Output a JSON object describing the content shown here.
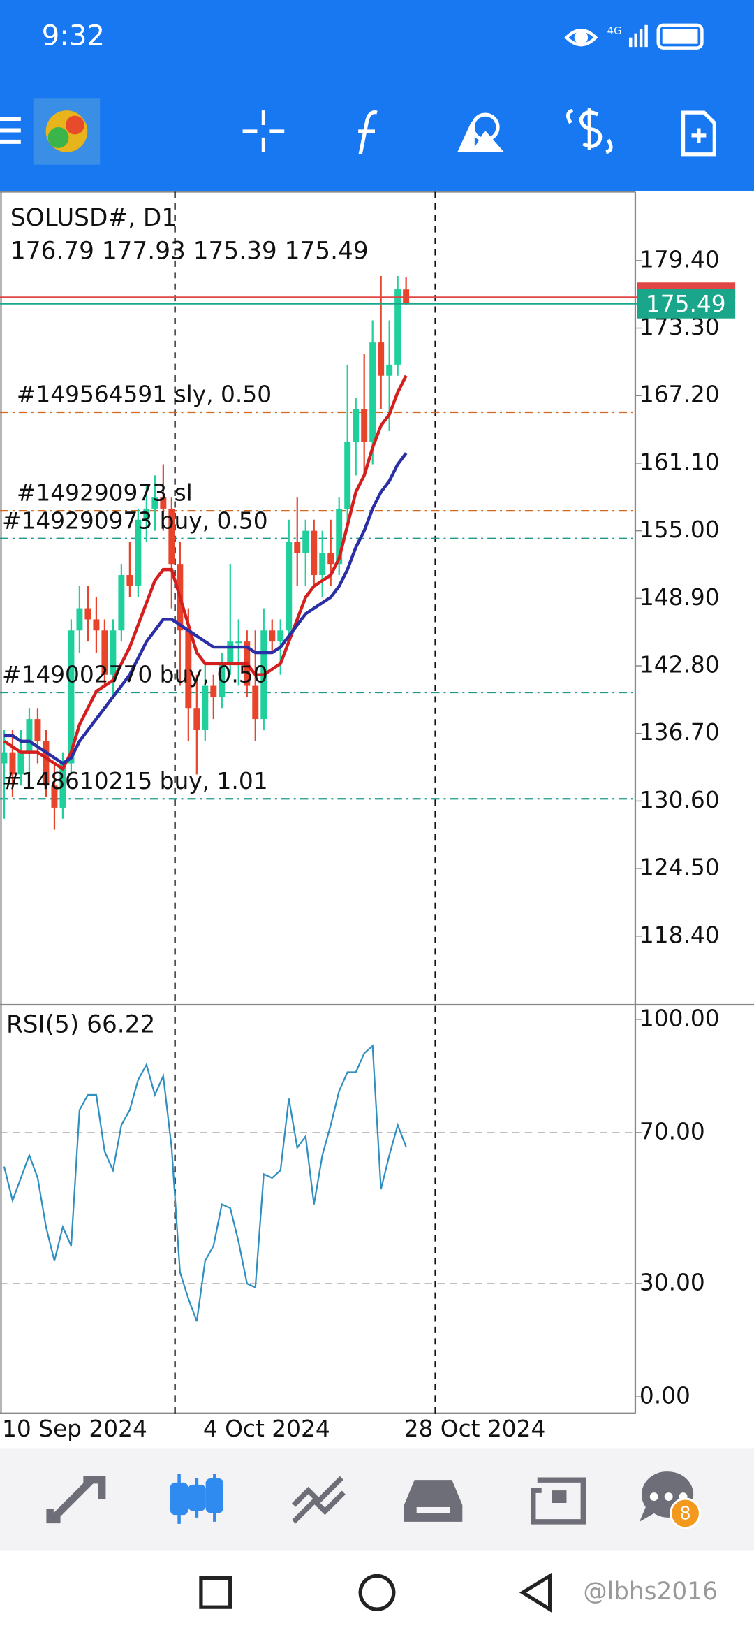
{
  "status_bar": {
    "time": "9:32",
    "network": "4G"
  },
  "chart_data": {
    "type": "candlestick",
    "symbol": "SOLUSD#, D1",
    "ohlc_header": "176.79 177.93 175.39 175.49",
    "categories": [
      "10 Sep 2024",
      null,
      null,
      null,
      null,
      null,
      null,
      null,
      null,
      null,
      null,
      null,
      null,
      null,
      null,
      null,
      null,
      null,
      null,
      null,
      null,
      null,
      null,
      null,
      "4 Oct 2024",
      null,
      null,
      null,
      null,
      null,
      null,
      null,
      null,
      null,
      null,
      null,
      null,
      null,
      null,
      null,
      null,
      null,
      null,
      null,
      null,
      null,
      null,
      null,
      "28 Oct 2024"
    ],
    "open": [
      134,
      135,
      133,
      135,
      138,
      136,
      132,
      130,
      134,
      146,
      148,
      147,
      146,
      142,
      146,
      151,
      150,
      156,
      157,
      158,
      157,
      152,
      146,
      139,
      137,
      141,
      140,
      143,
      145,
      145,
      141,
      138,
      146,
      145,
      146,
      154,
      153,
      155,
      151,
      153,
      152,
      157,
      163,
      166,
      163,
      172,
      169,
      170,
      176.79
    ],
    "high": [
      137,
      137,
      137,
      139,
      139,
      137,
      134,
      135,
      147,
      150,
      150,
      149,
      147,
      147,
      152,
      154,
      157,
      159,
      160,
      161,
      158,
      154,
      148,
      142,
      143,
      142,
      144,
      152,
      147,
      146,
      146,
      148,
      147,
      147,
      156,
      158,
      156,
      156,
      155,
      156,
      158,
      170,
      167,
      171,
      174,
      178,
      174,
      178,
      177.93
    ],
    "low": [
      129,
      131,
      132,
      133,
      134,
      131,
      128,
      129,
      133,
      144,
      145,
      144,
      141,
      140,
      145,
      149,
      149,
      154,
      155,
      155,
      148,
      141,
      136,
      133,
      136,
      138,
      139,
      142,
      141,
      140,
      136,
      137,
      144,
      142,
      145,
      150,
      150,
      150,
      149,
      150,
      151,
      155,
      160,
      160,
      161,
      166,
      164,
      169,
      175.39
    ],
    "close": [
      135,
      133,
      135,
      138,
      136,
      132,
      130,
      134,
      146,
      148,
      147,
      146,
      142,
      146,
      151,
      150,
      156,
      157,
      158,
      157,
      152,
      146,
      139,
      137,
      141,
      140,
      143,
      145,
      145,
      141,
      138,
      146,
      145,
      146,
      154,
      153,
      155,
      151,
      153,
      152,
      157,
      163,
      166,
      163,
      172,
      169,
      170,
      176.8,
      175.49
    ],
    "up_color": "#1fcf9c",
    "down_color": "#e8432b",
    "ylim": [
      112.3,
      185.7
    ],
    "yticks": [
      {
        "value": 179.4,
        "label": "179.40"
      },
      {
        "value": 173.3,
        "label": "173.30"
      },
      {
        "value": 167.2,
        "label": "167.20"
      },
      {
        "value": 161.1,
        "label": "161.10"
      },
      {
        "value": 155,
        "label": "155.00"
      },
      {
        "value": 148.9,
        "label": "148.90"
      },
      {
        "value": 142.8,
        "label": "142.80"
      },
      {
        "value": 136.7,
        "label": "136.70"
      },
      {
        "value": 130.6,
        "label": "130.60"
      },
      {
        "value": 124.5,
        "label": "124.50"
      },
      {
        "value": 118.4,
        "label": "118.40"
      }
    ],
    "moving_averages": [
      {
        "color": "#d41f1f",
        "values": [
          136,
          135.5,
          135,
          135,
          135,
          134.5,
          134,
          133.5,
          135,
          137.5,
          139,
          140.5,
          141,
          141.5,
          143,
          144.5,
          146.5,
          148.5,
          150.5,
          151.5,
          151.5,
          149,
          146.5,
          144,
          143,
          143,
          143,
          143,
          143,
          143,
          142,
          142,
          142.5,
          143,
          145,
          147,
          149,
          150,
          150.5,
          151,
          152.5,
          155.5,
          158.5,
          160,
          162.5,
          164.5,
          165.5,
          167.5,
          169
        ]
      },
      {
        "color": "#2b2fa6",
        "values": [
          136.5,
          136.5,
          136,
          136,
          135.5,
          135,
          134.5,
          134,
          134.5,
          136,
          137,
          138,
          139,
          140,
          141,
          142,
          143.5,
          145,
          146,
          147,
          147,
          146.5,
          146,
          145.5,
          145,
          144.5,
          144.5,
          144.5,
          144.5,
          144.5,
          144,
          144,
          144,
          144.5,
          145.5,
          146.5,
          147.5,
          148,
          148.5,
          149,
          150,
          151.5,
          153.5,
          155,
          157,
          158.5,
          159.5,
          161,
          162
        ]
      }
    ],
    "orders": [
      {
        "label": "#149564591 sly, 0.50",
        "price": 165.7,
        "color": "#d2691e"
      },
      {
        "label": "#149290973 sl",
        "price": 156.8,
        "color": "#d2691e"
      },
      {
        "label": "#149290973 buy, 0.50",
        "price": 154.3,
        "color": "#1f9a8a"
      },
      {
        "label": "#149002770 buy, 0.50",
        "price": 140.4,
        "color": "#1f9a8a"
      },
      {
        "label": "#148610215 buy, 1.01",
        "price": 130.8,
        "color": "#1f9a8a"
      }
    ],
    "ask_price": 176.1,
    "ask_color": "#e04646",
    "current_price": 175.49,
    "current_color": "#1aa68a"
  },
  "rsi": {
    "type": "line",
    "title": "RSI(5) 66.22",
    "color": "#2f8fc0",
    "values": [
      61,
      52,
      58,
      64,
      58,
      45,
      36,
      45,
      40,
      76,
      80,
      80,
      65,
      60,
      72,
      76,
      84,
      88,
      80,
      85,
      66,
      33,
      26,
      20,
      36,
      40,
      51,
      50,
      41,
      30,
      29,
      59,
      58,
      60,
      79,
      66,
      69,
      51,
      64,
      72,
      81,
      86,
      86,
      91,
      93,
      55,
      64,
      72,
      66.22
    ],
    "ylim": [
      -4.1,
      103.6
    ],
    "yticks": [
      {
        "value": 100,
        "label": "100.00"
      },
      {
        "value": 70,
        "label": "70.00"
      },
      {
        "value": 30,
        "label": "30.00"
      },
      {
        "value": 0,
        "label": "0.00"
      }
    ],
    "levels": [
      70,
      30
    ]
  },
  "nav": {
    "badge": "8"
  },
  "watermark": "@lbhs2016"
}
